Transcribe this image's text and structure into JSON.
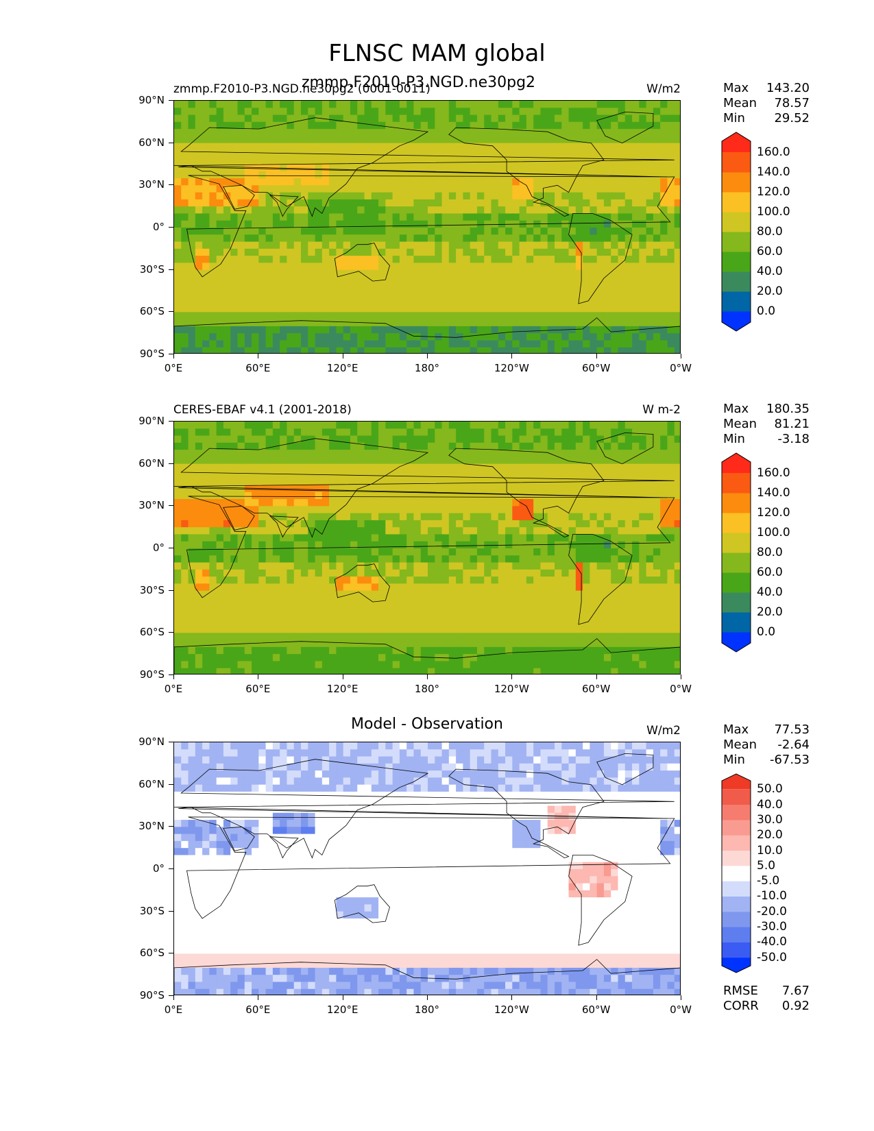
{
  "title": "FLNSC MAM global",
  "colors": {
    "abs": [
      "#0033ff",
      "#0066a6",
      "#3b8a5e",
      "#4aa619",
      "#85b81c",
      "#cfc623",
      "#fbc023",
      "#fb8c0e",
      "#fb5a13",
      "#ff2a1a"
    ],
    "diff": [
      "#0033ff",
      "#3a5cf3",
      "#5e7ef0",
      "#7f98ee",
      "#a1b3f2",
      "#d4dcfb",
      "#ffffff",
      "#fdd9d6",
      "#fcb8b1",
      "#f99b91",
      "#f67c6f",
      "#f15b4a",
      "#ef3a26"
    ]
  },
  "x_ticks": [
    "0°E",
    "60°E",
    "120°E",
    "180°",
    "120°W",
    "60°W",
    "0°W"
  ],
  "y_ticks": [
    "90°N",
    "60°N",
    "30°N",
    "0°",
    "30°S",
    "60°S",
    "90°S"
  ],
  "panels": [
    {
      "left_title": "zmmp.F2010-P3.NGD.ne30pg2 (0001-0011)",
      "center_title": "zmmp.F2010-P3.NGD.ne30pg2",
      "units": "W/m2",
      "stats": {
        "max_label": "Max",
        "max": "143.20",
        "mean_label": "Mean",
        "mean": "78.57",
        "min_label": "Min",
        "min": "29.52"
      },
      "colorbar_labels": [
        "160.0",
        "140.0",
        "120.0",
        "100.0",
        "80.0",
        "60.0",
        "40.0",
        "20.0",
        "0.0"
      ]
    },
    {
      "left_title": "CERES-EBAF v4.1 (2001-2018)",
      "units": "W m-2",
      "stats": {
        "max_label": "Max",
        "max": "180.35",
        "mean_label": "Mean",
        "mean": "81.21",
        "min_label": "Min",
        "min": "-3.18"
      },
      "colorbar_labels": [
        "160.0",
        "140.0",
        "120.0",
        "100.0",
        "80.0",
        "60.0",
        "40.0",
        "20.0",
        "0.0"
      ]
    },
    {
      "center_title": "Model - Observation",
      "units": "W/m2",
      "stats": {
        "max_label": "Max",
        "max": "77.53",
        "mean_label": "Mean",
        "mean": "-2.64",
        "min_label": "Min",
        "min": "-67.53"
      },
      "colorbar_labels": [
        "50.0",
        "40.0",
        "30.0",
        "20.0",
        "10.0",
        "5.0",
        "-5.0",
        "-10.0",
        "-20.0",
        "-30.0",
        "-40.0",
        "-50.0"
      ],
      "rmse_label": "RMSE",
      "rmse": "7.67",
      "corr_label": "CORR",
      "corr": "0.92"
    }
  ],
  "chart_data": {
    "type": "heatmap",
    "title": "FLNSC MAM global",
    "xlim": [
      0,
      360
    ],
    "ylim": [
      -90,
      90
    ],
    "levels_abs": [
      0,
      20,
      40,
      60,
      80,
      100,
      120,
      140,
      160
    ],
    "levels_diff": [
      -50,
      -40,
      -30,
      -20,
      -10,
      -5,
      5,
      10,
      20,
      30,
      40,
      50
    ]
  }
}
